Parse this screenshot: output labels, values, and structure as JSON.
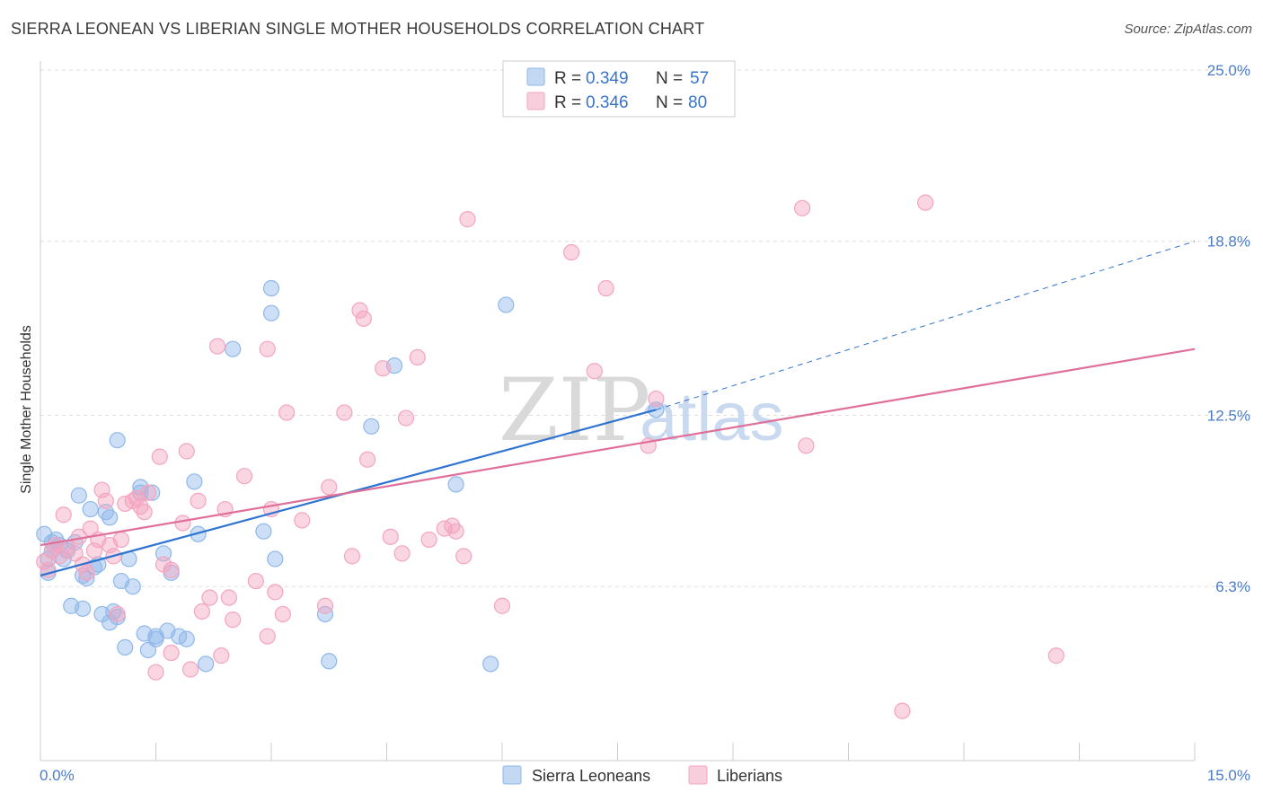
{
  "header": {
    "title": "SIERRA LEONEAN VS LIBERIAN SINGLE MOTHER HOUSEHOLDS CORRELATION CHART",
    "source": "Source: ZipAtlas.com"
  },
  "watermark": {
    "zip": "ZIP",
    "atlas": "atlas"
  },
  "legend": {
    "rows": [
      {
        "r_label": "R =",
        "r_value": "0.349",
        "n_label": "N =",
        "n_value": "57",
        "color": "#8fb8ea"
      },
      {
        "r_label": "R =",
        "r_value": "0.346",
        "n_label": "N =",
        "n_value": "80",
        "color": "#f3a5bf"
      }
    ]
  },
  "bottom_legend": {
    "items": [
      {
        "label": "Sierra Leoneans",
        "color": "#8fb8ea"
      },
      {
        "label": "Liberians",
        "color": "#f3a5bf"
      }
    ]
  },
  "chart_data": {
    "type": "scatter",
    "title": "SIERRA LEONEAN VS LIBERIAN SINGLE MOTHER HOUSEHOLDS CORRELATION CHART",
    "xlabel": "",
    "ylabel": "Single Mother Households",
    "xlim": [
      0,
      15
    ],
    "ylim": [
      0,
      25
    ],
    "x_tick_labels": [
      "0.0%",
      "15.0%"
    ],
    "y_ticks": [
      6.3,
      12.5,
      18.8,
      25.0
    ],
    "y_tick_labels": [
      "6.3%",
      "12.5%",
      "18.8%",
      "25.0%"
    ],
    "grid": true,
    "legend_position": "top-center",
    "series": [
      {
        "name": "Sierra Leoneans",
        "color": "#8fb8ea",
        "line_color": "#2f74d0",
        "trend": {
          "x": [
            0,
            8.0
          ],
          "y": [
            6.7,
            12.7
          ],
          "dashed_extension": {
            "x": [
              8.0,
              15.0
            ],
            "y": [
              12.7,
              18.8
            ]
          }
        },
        "points": [
          [
            0.05,
            8.2
          ],
          [
            0.1,
            7.3
          ],
          [
            0.1,
            6.8
          ],
          [
            0.15,
            7.6
          ],
          [
            0.15,
            7.9
          ],
          [
            0.2,
            8.0
          ],
          [
            0.25,
            7.8
          ],
          [
            0.3,
            7.3
          ],
          [
            0.35,
            7.6
          ],
          [
            0.4,
            5.6
          ],
          [
            0.45,
            7.9
          ],
          [
            0.5,
            9.6
          ],
          [
            0.55,
            5.5
          ],
          [
            0.55,
            6.7
          ],
          [
            0.6,
            6.6
          ],
          [
            0.65,
            9.1
          ],
          [
            0.7,
            7.0
          ],
          [
            0.75,
            7.1
          ],
          [
            0.8,
            5.3
          ],
          [
            0.85,
            9.0
          ],
          [
            0.9,
            5.0
          ],
          [
            0.9,
            8.8
          ],
          [
            0.95,
            5.4
          ],
          [
            1.0,
            5.2
          ],
          [
            1.0,
            11.6
          ],
          [
            1.05,
            6.5
          ],
          [
            1.1,
            4.1
          ],
          [
            1.15,
            7.3
          ],
          [
            1.2,
            6.3
          ],
          [
            1.3,
            9.7
          ],
          [
            1.3,
            9.9
          ],
          [
            1.35,
            4.6
          ],
          [
            1.4,
            4.0
          ],
          [
            1.45,
            9.7
          ],
          [
            1.5,
            4.4
          ],
          [
            1.5,
            4.5
          ],
          [
            1.6,
            7.5
          ],
          [
            1.65,
            4.7
          ],
          [
            1.7,
            6.8
          ],
          [
            1.8,
            4.5
          ],
          [
            1.9,
            4.4
          ],
          [
            2.0,
            10.1
          ],
          [
            2.05,
            8.2
          ],
          [
            2.15,
            3.5
          ],
          [
            2.5,
            14.9
          ],
          [
            2.9,
            8.3
          ],
          [
            3.0,
            17.1
          ],
          [
            3.0,
            16.2
          ],
          [
            3.05,
            7.3
          ],
          [
            3.7,
            5.3
          ],
          [
            3.75,
            3.6
          ],
          [
            4.3,
            12.1
          ],
          [
            4.6,
            14.3
          ],
          [
            5.4,
            10.0
          ],
          [
            5.85,
            3.5
          ],
          [
            6.05,
            16.5
          ],
          [
            8.0,
            12.7
          ]
        ]
      },
      {
        "name": "Liberians",
        "color": "#f3a5bf",
        "line_color": "#e0709a",
        "trend": {
          "x": [
            0,
            15.0
          ],
          "y": [
            7.8,
            14.9
          ]
        },
        "points": [
          [
            0.05,
            7.2
          ],
          [
            0.1,
            6.9
          ],
          [
            0.15,
            7.6
          ],
          [
            0.2,
            7.8
          ],
          [
            0.25,
            7.4
          ],
          [
            0.3,
            8.9
          ],
          [
            0.35,
            7.7
          ],
          [
            0.45,
            7.5
          ],
          [
            0.5,
            8.1
          ],
          [
            0.55,
            7.1
          ],
          [
            0.6,
            6.8
          ],
          [
            0.65,
            8.4
          ],
          [
            0.7,
            7.6
          ],
          [
            0.75,
            8.0
          ],
          [
            0.8,
            9.8
          ],
          [
            0.85,
            9.4
          ],
          [
            0.9,
            7.8
          ],
          [
            0.95,
            7.4
          ],
          [
            1.0,
            5.3
          ],
          [
            1.05,
            8.0
          ],
          [
            1.1,
            9.3
          ],
          [
            1.2,
            9.4
          ],
          [
            1.25,
            9.5
          ],
          [
            1.3,
            9.2
          ],
          [
            1.35,
            9.0
          ],
          [
            1.4,
            9.7
          ],
          [
            1.5,
            3.2
          ],
          [
            1.55,
            11.0
          ],
          [
            1.6,
            7.1
          ],
          [
            1.7,
            6.9
          ],
          [
            1.7,
            3.9
          ],
          [
            1.85,
            8.6
          ],
          [
            1.9,
            11.2
          ],
          [
            1.95,
            3.3
          ],
          [
            2.05,
            9.4
          ],
          [
            2.1,
            5.4
          ],
          [
            2.2,
            5.9
          ],
          [
            2.3,
            15.0
          ],
          [
            2.35,
            3.8
          ],
          [
            2.4,
            9.1
          ],
          [
            2.45,
            5.9
          ],
          [
            2.5,
            5.1
          ],
          [
            2.65,
            10.3
          ],
          [
            2.8,
            6.5
          ],
          [
            2.95,
            4.5
          ],
          [
            2.95,
            14.9
          ],
          [
            3.0,
            9.1
          ],
          [
            3.05,
            6.1
          ],
          [
            3.15,
            5.3
          ],
          [
            3.2,
            12.6
          ],
          [
            3.4,
            8.7
          ],
          [
            3.7,
            5.6
          ],
          [
            3.75,
            9.9
          ],
          [
            3.95,
            12.6
          ],
          [
            4.05,
            7.4
          ],
          [
            4.15,
            16.3
          ],
          [
            4.2,
            16.0
          ],
          [
            4.25,
            10.9
          ],
          [
            4.45,
            14.2
          ],
          [
            4.55,
            8.1
          ],
          [
            4.7,
            7.5
          ],
          [
            4.75,
            12.4
          ],
          [
            4.9,
            14.6
          ],
          [
            5.05,
            8.0
          ],
          [
            5.25,
            8.4
          ],
          [
            5.35,
            8.5
          ],
          [
            5.4,
            8.3
          ],
          [
            5.5,
            7.4
          ],
          [
            5.55,
            19.6
          ],
          [
            6.0,
            5.6
          ],
          [
            6.9,
            18.4
          ],
          [
            7.2,
            14.1
          ],
          [
            7.35,
            17.1
          ],
          [
            7.9,
            11.4
          ],
          [
            8.0,
            13.1
          ],
          [
            9.9,
            20.0
          ],
          [
            9.95,
            11.4
          ],
          [
            11.2,
            1.8
          ],
          [
            11.5,
            20.2
          ],
          [
            13.2,
            3.8
          ]
        ]
      }
    ]
  }
}
